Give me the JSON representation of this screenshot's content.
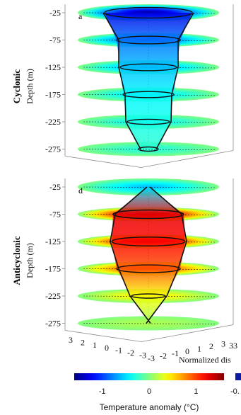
{
  "chart_data": {
    "type": "heatmap",
    "panels": [
      {
        "label": "a",
        "row_label": "Cyclonic",
        "ylabel": "Depth (m)",
        "depth_ticks": [
          -25,
          -75,
          -125,
          -175,
          -225,
          -275
        ],
        "core_anomaly_c": [
          -1.5,
          -1.0,
          -0.7,
          -0.5,
          -0.4,
          -0.3
        ],
        "contour_half_width": [
          0.62,
          0.45,
          0.4,
          0.36,
          0.3,
          0.14
        ]
      },
      {
        "label": "d",
        "row_label": "Anticyclonic",
        "ylabel": "Depth (m)",
        "depth_ticks": [
          -25,
          -75,
          -125,
          -175,
          -225,
          -275
        ],
        "core_anomaly_c": [
          -0.6,
          1.5,
          1.4,
          1.1,
          0.45,
          0.15
        ],
        "contour_half_width": [
          0.0,
          0.5,
          0.52,
          0.45,
          0.24,
          0.0
        ]
      }
    ],
    "x_ticks": [
      "3",
      "2",
      "1",
      "0",
      "-1",
      "-2",
      "-3"
    ],
    "y_ticks": [
      "-3",
      "-2",
      "-1",
      "0",
      "1",
      "2",
      "3"
    ],
    "xlabel": "Normalized dis",
    "corner_ticks": "33",
    "colorbar": {
      "label": "Temperature anomaly (°C)",
      "range": [
        -1.6,
        1.6
      ],
      "ticks": [
        "-1",
        "0",
        "1"
      ],
      "right_tick": "-0."
    },
    "colors": {
      "contour": "#111111",
      "box_line": "#8a8a8a"
    }
  }
}
